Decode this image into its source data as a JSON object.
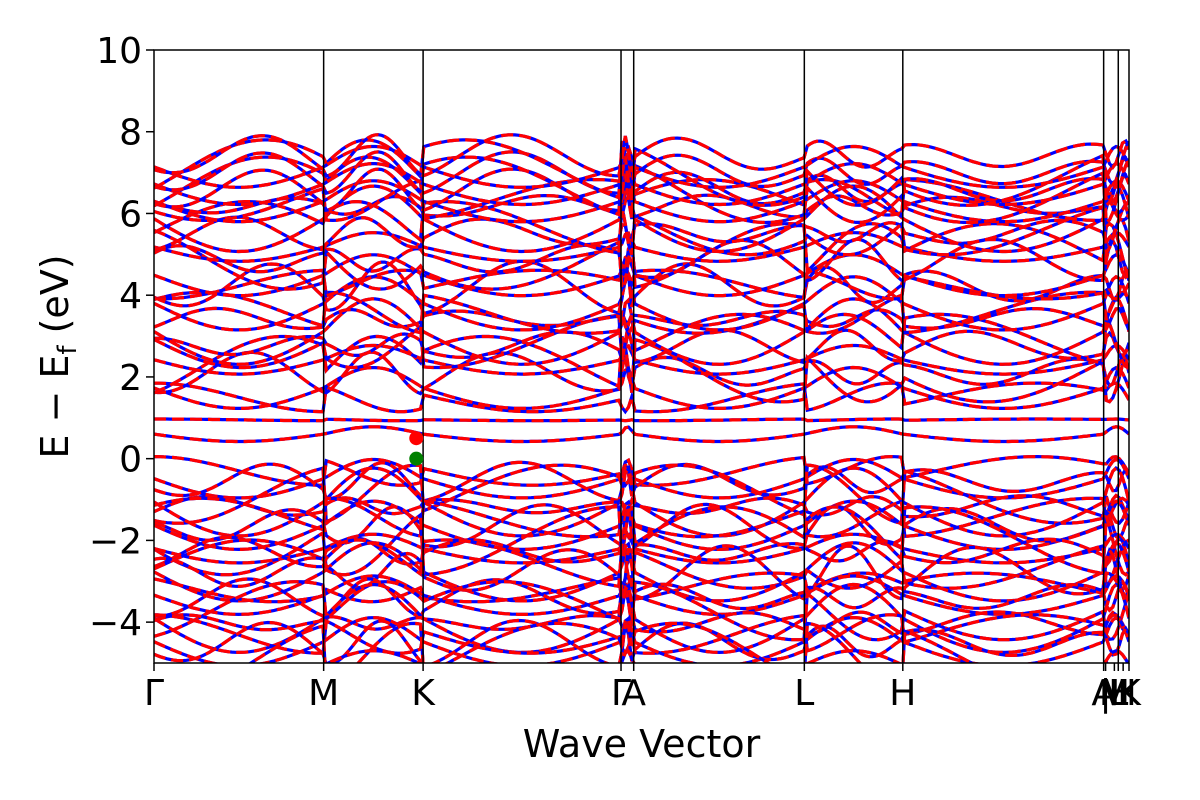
{
  "chart_data": {
    "type": "line",
    "xlabel": "Wave Vector",
    "ylabel_parts": {
      "main": "E − E",
      "sub": "f",
      "unit": " (eV)"
    },
    "ylim": [
      -5,
      10
    ],
    "yticks": [
      -4,
      -2,
      0,
      2,
      4,
      6,
      8,
      10
    ],
    "ytick_labels": [
      "−4",
      "−2",
      "0",
      "2",
      "4",
      "6",
      "8",
      "10"
    ],
    "xlim": [
      0,
      1
    ],
    "kpoints": [
      {
        "label": "Γ",
        "x": 0.0
      },
      {
        "label": "M",
        "x": 0.174
      },
      {
        "label": "K",
        "x": 0.276
      },
      {
        "label": "Γ",
        "x": 0.479
      },
      {
        "label": "A",
        "x": 0.492
      },
      {
        "label": "L",
        "x": 0.667
      },
      {
        "label": "H",
        "x": 0.768
      },
      {
        "label": "A",
        "x": 0.974
      },
      {
        "label": "L",
        "x": 0.989
      },
      {
        "label": "M",
        "x": 0.985
      },
      {
        "label": "|",
        "x": 0.976
      },
      {
        "label": "H",
        "x": 0.994
      },
      {
        "label": "K",
        "x": 1.0
      }
    ],
    "series": [
      {
        "name": "",
        "color": "#0000ff",
        "dash": "solid"
      },
      {
        "name": "",
        "color": "#ff0000",
        "dash": "dashed"
      }
    ],
    "markers": [
      {
        "x": 0.269,
        "y": 0.5,
        "color": "#ff0000",
        "role": "CBM"
      },
      {
        "x": 0.269,
        "y": 0.0,
        "color": "#008000",
        "role": "VBM"
      }
    ],
    "grid": false
  }
}
